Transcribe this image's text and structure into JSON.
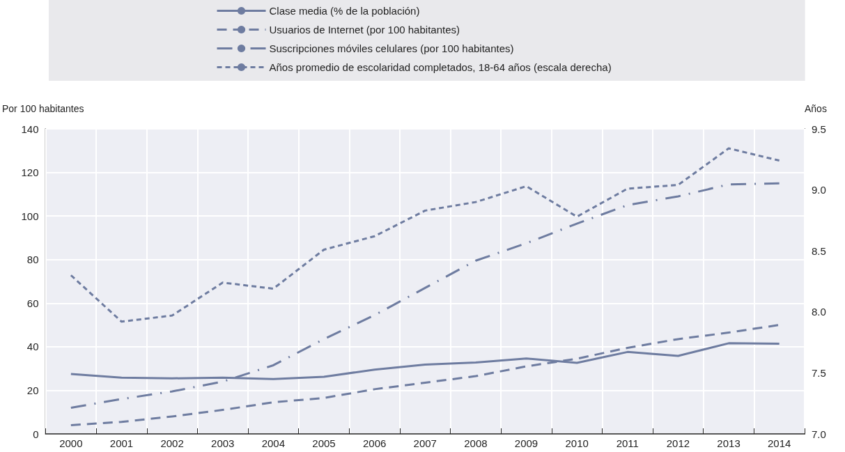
{
  "chart_data": {
    "type": "line",
    "categories": [
      "2000",
      "2001",
      "2002",
      "2003",
      "2004",
      "2005",
      "2006",
      "2007",
      "2008",
      "2009",
      "2010",
      "2011",
      "2012",
      "2013",
      "2014"
    ],
    "series": [
      {
        "name": "Clase media (% de la población)",
        "color": "#6e7ca0",
        "line_style": "solid",
        "values": [
          27.5,
          25.8,
          25.5,
          25.8,
          25.2,
          26.2,
          29.5,
          31.8,
          32.8,
          34.6,
          32.6,
          37.6,
          35.8,
          41.6,
          41.4
        ]
      },
      {
        "name": "Usuarios de Internet (por 100 habitantes)",
        "color": "#6e7ca0",
        "line_style": "dashed",
        "values": [
          4,
          5.5,
          8,
          11,
          14.5,
          16.5,
          20.5,
          23.5,
          26.5,
          31,
          34.5,
          39.5,
          43.5,
          46.5,
          50
        ]
      },
      {
        "name": "Suscripciones móviles celulares (por 100 habitantes)",
        "color": "#6e7ca0",
        "line_style": "dashdot",
        "values": [
          12,
          16,
          19.5,
          24,
          31.5,
          43.5,
          54.5,
          67,
          79.5,
          87.5,
          96.5,
          105,
          109,
          114.5,
          115
        ]
      },
      {
        "name": "Años promedio de escolaridad completados, 18-64 años (escala derecha)",
        "color": "#6e7ca0",
        "line_style": "dotted",
        "axis": "y2",
        "values": [
          8.3,
          7.92,
          7.97,
          8.24,
          8.19,
          8.51,
          8.62,
          8.83,
          8.9,
          9.03,
          8.78,
          9.01,
          9.04,
          9.34,
          9.24
        ]
      }
    ],
    "ylabel": "Por 100 habitantes",
    "y2label": "Años",
    "ylim": [
      0,
      140
    ],
    "yticks": [
      0,
      20,
      40,
      60,
      80,
      100,
      120,
      140
    ],
    "y2lim": [
      7,
      9.5
    ],
    "y2ticks": [
      {
        "value": 7,
        "label": "7.0"
      },
      {
        "value": 7.5,
        "label": "7.5"
      },
      {
        "value": 8,
        "label": "8.0"
      },
      {
        "value": 8.5,
        "label": "8.5"
      },
      {
        "value": 9,
        "label": "9.0"
      },
      {
        "value": 9.5,
        "label": "9.5"
      }
    ],
    "grid": true,
    "legend": "top",
    "marker": "none"
  }
}
